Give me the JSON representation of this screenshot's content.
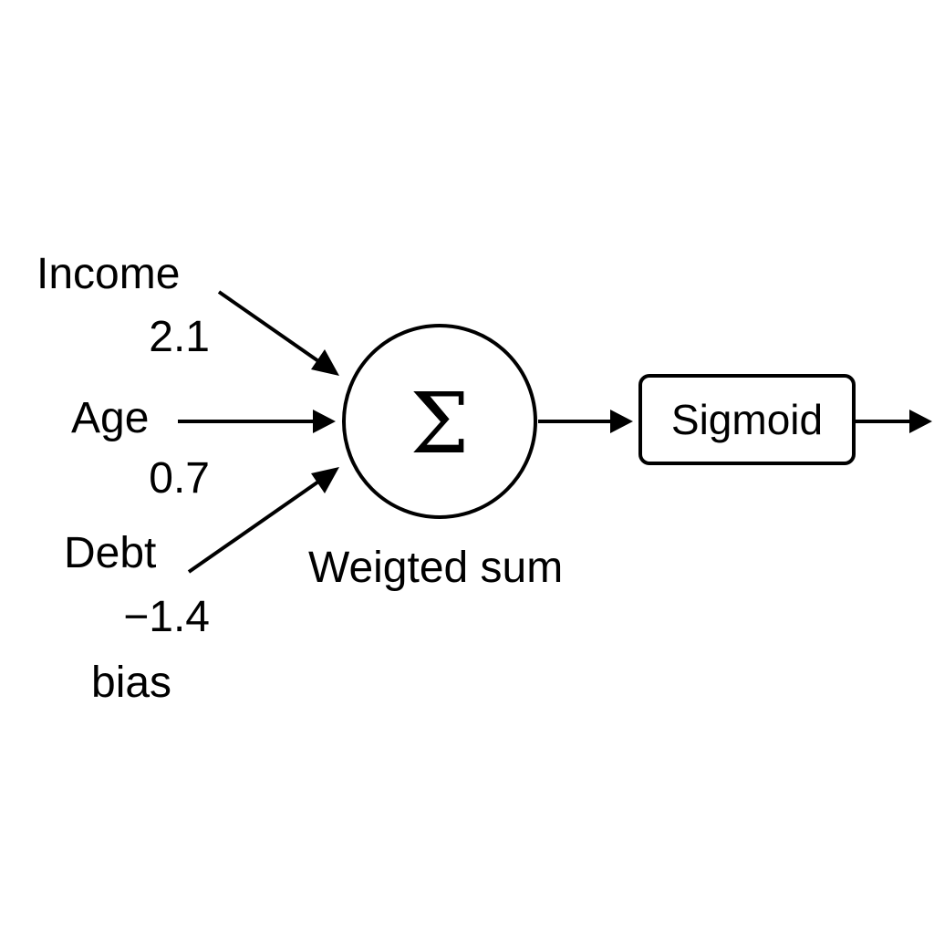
{
  "inputs": [
    {
      "name": "Income",
      "weight": "2.1"
    },
    {
      "name": "Age",
      "weight": "0.7"
    },
    {
      "name": "Debt",
      "weight": "−1.4"
    }
  ],
  "bias_label": "bias",
  "sum_node": {
    "symbol": "Σ",
    "caption": "Weigted sum"
  },
  "activation": {
    "label": "Sigmoid"
  },
  "colors": {
    "stroke": "#000000",
    "background": "#ffffff"
  }
}
